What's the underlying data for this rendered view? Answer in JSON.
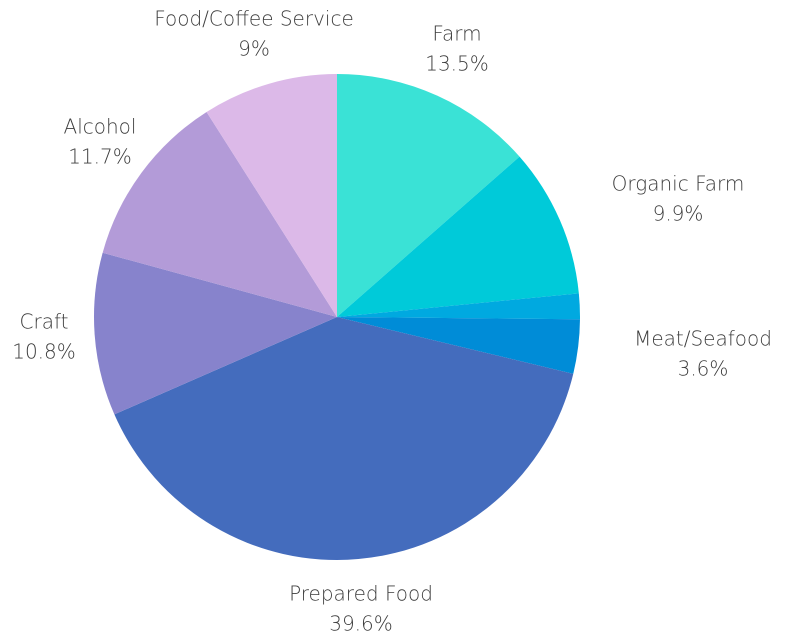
{
  "chart_data": {
    "type": "pie",
    "start_angle_deg": 0,
    "direction": "clockwise",
    "legend": "none",
    "slices": [
      {
        "label": "Farm",
        "value": 13.5,
        "value_label": "13.5%",
        "color": "#3ae2d6"
      },
      {
        "label": "Organic Farm",
        "value": 9.9,
        "value_label": "9.9%",
        "color": "#00cad9"
      },
      {
        "label": "",
        "value": 1.7,
        "value_label": "",
        "color": "#00a9e0"
      },
      {
        "label": "Meat/Seafood",
        "value": 3.6,
        "value_label": "3.6%",
        "color": "#008cd7"
      },
      {
        "label": "Prepared Food",
        "value": 39.6,
        "value_label": "39.6%",
        "color": "#446cbd"
      },
      {
        "label": "Craft",
        "value": 10.8,
        "value_label": "10.8%",
        "color": "#8783cc"
      },
      {
        "label": "Alcohol",
        "value": 11.7,
        "value_label": "11.7%",
        "color": "#b39bd8"
      },
      {
        "label": "Food/Coffee Service",
        "value": 9,
        "value_label": "9%",
        "color": "#dcb9e8"
      }
    ]
  }
}
